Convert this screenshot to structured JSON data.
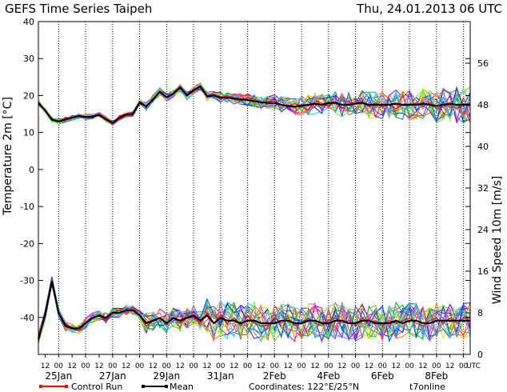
{
  "chart_data": {
    "type": "line",
    "title": "GEFS Time Series Taipeh",
    "date_text": "Thu, 24.01.2013 06 UTC",
    "ylabel_left": "Temperature 2m [°C]",
    "ylabel_right": "Wind Speed 10m [m/s]",
    "temperature_axis": {
      "range": [
        -50,
        40
      ],
      "ticks": [
        40,
        30,
        20,
        10,
        0,
        -10,
        -20,
        -30,
        -40
      ],
      "labels": [
        "40",
        "30",
        "20",
        "10",
        "0",
        "-10",
        "-20",
        "-30",
        "-40"
      ]
    },
    "wind_axis": {
      "range": [
        0,
        64
      ],
      "ticks": [
        0,
        8,
        16,
        24,
        32,
        40,
        48,
        56
      ],
      "labels": [
        "0",
        "8",
        "16",
        "24",
        "32",
        "40",
        "48",
        "56"
      ]
    },
    "time_axis": {
      "unit": "hours since 24.01.2013 06 UTC",
      "range": [
        0,
        384
      ],
      "hour_ticks": [
        6,
        18,
        30,
        42,
        54,
        66,
        78,
        90,
        102,
        114,
        126,
        138,
        150,
        162,
        174,
        186,
        198,
        210,
        222,
        234,
        246,
        258,
        270,
        282,
        294,
        306,
        318,
        330,
        342,
        354,
        366,
        378
      ],
      "hour_labels": [
        "12",
        "00",
        "12",
        "00",
        "12",
        "00",
        "12",
        "00",
        "12",
        "00",
        "12",
        "00",
        "12",
        "00",
        "12",
        "00",
        "12",
        "00",
        "12",
        "00",
        "12",
        "00",
        "12",
        "00",
        "12",
        "00",
        "12",
        "00",
        "12",
        "00",
        "12",
        "00"
      ],
      "utc_label": "UTC",
      "date_positions": [
        18,
        66,
        114,
        162,
        210,
        258,
        306,
        354
      ],
      "date_labels": [
        "25Jan",
        "27Jan",
        "29Jan",
        "31Jan",
        "2Feb",
        "4Feb",
        "6Feb",
        "8Feb"
      ],
      "day_lines": [
        18,
        42,
        66,
        90,
        114,
        138,
        162,
        186,
        210,
        234,
        258,
        282,
        306,
        330,
        354,
        378
      ]
    },
    "mean": {
      "name": "Mean",
      "temperature_x": [
        0,
        6,
        12,
        18,
        24,
        30,
        36,
        42,
        48,
        54,
        60,
        66,
        72,
        78,
        84,
        90,
        96,
        102,
        108,
        114,
        120,
        126,
        132,
        138,
        144,
        150,
        156,
        162,
        168,
        174,
        180,
        186,
        192,
        198,
        204,
        210,
        216,
        222,
        228,
        234,
        240,
        246,
        252,
        258,
        264,
        270,
        276,
        282,
        288,
        294,
        300,
        306,
        312,
        318,
        324,
        330,
        336,
        342,
        348,
        354,
        360,
        366,
        372,
        378,
        384
      ],
      "temperature": [
        18,
        16,
        13.5,
        13,
        13.5,
        14,
        14.5,
        14.2,
        14.3,
        14.8,
        13.6,
        12.5,
        14,
        14.8,
        15,
        18.2,
        17,
        19,
        21,
        19.5,
        20.5,
        22.2,
        20,
        21.5,
        22.5,
        19.8,
        20,
        19.5,
        19.5,
        19.2,
        19,
        18.8,
        18.5,
        18.2,
        18,
        18,
        17.5,
        17.2,
        17,
        17.3,
        17.5,
        17.8,
        17.5,
        18,
        18,
        17.5,
        17.5,
        17.8,
        18,
        17.5,
        17.5,
        17.5,
        17.5,
        17.8,
        17.5,
        17.5,
        17.5,
        17.8,
        17.5,
        17.2,
        17.5,
        17.8,
        17.5,
        17.5,
        17.5
      ],
      "wind_x": [
        0,
        6,
        12,
        18,
        24,
        30,
        36,
        42,
        48,
        54,
        60,
        66,
        72,
        78,
        84,
        90,
        96,
        102,
        108,
        114,
        120,
        126,
        132,
        138,
        144,
        150,
        156,
        162,
        168,
        174,
        180,
        186,
        192,
        198,
        204,
        210,
        216,
        222,
        228,
        234,
        240,
        246,
        252,
        258,
        264,
        270,
        276,
        282,
        288,
        294,
        300,
        306,
        312,
        318,
        324,
        330,
        336,
        342,
        348,
        354,
        360,
        366,
        372,
        378,
        384
      ],
      "wind": [
        3,
        7.5,
        14,
        8,
        5.5,
        5,
        5,
        6,
        7,
        7.5,
        7,
        8,
        8,
        8.5,
        8.5,
        7.5,
        6,
        6.5,
        7,
        6,
        7,
        6.5,
        7,
        7.5,
        6.5,
        7.5,
        6,
        7,
        6.5,
        6.5,
        6,
        6.5,
        6.5,
        6,
        6,
        6,
        6.5,
        6.5,
        6,
        6,
        6.5,
        6.5,
        6,
        6,
        6.5,
        6.5,
        6,
        6,
        6.5,
        6.5,
        6,
        6,
        6,
        6.5,
        6,
        6.5,
        6.5,
        6,
        6,
        6.5,
        6.5,
        6.5,
        6.5,
        6.5,
        6.5
      ]
    },
    "control_run": {
      "name": "Control Run",
      "temperature_x": [
        0,
        6,
        12,
        18,
        24,
        30,
        36,
        42,
        48,
        54,
        60,
        66,
        72,
        78,
        84,
        90,
        96,
        102,
        108,
        114,
        120,
        126,
        132,
        138,
        144,
        150,
        156,
        162,
        168,
        174,
        180,
        186,
        192,
        198,
        204,
        210,
        216,
        222,
        228,
        234,
        240,
        246,
        252,
        258,
        264,
        270,
        276,
        282,
        288,
        294,
        300,
        306,
        312,
        318,
        324,
        330,
        336,
        342,
        348,
        354,
        360,
        366,
        372,
        378,
        384
      ],
      "temperature": [
        18,
        16,
        13.5,
        13,
        14,
        14,
        14.6,
        14,
        14.5,
        14.5,
        13.5,
        12.5,
        14.5,
        15,
        15.5,
        17.8,
        17,
        19,
        21,
        19.5,
        20.5,
        22,
        20,
        21,
        22.5,
        20,
        20.5,
        19,
        20,
        19,
        18.5,
        19.5,
        19,
        18,
        18.5,
        18.5,
        17.5,
        17,
        17.8,
        17,
        16,
        18.5,
        18,
        17,
        18.5,
        16.5,
        18,
        18,
        18.5,
        17,
        18,
        17,
        17.5,
        16.5,
        17.5,
        17.5,
        18,
        17,
        18,
        16.5,
        17,
        17.5,
        16.5,
        17.5,
        18
      ],
      "wind_x": [
        0,
        6,
        12,
        18,
        24,
        30,
        36,
        42,
        48,
        54,
        60,
        66,
        72,
        78,
        84,
        90,
        96,
        102,
        108,
        114,
        120,
        126,
        132,
        138,
        144,
        150,
        156,
        162,
        168,
        174,
        180,
        186,
        192,
        198,
        204,
        210,
        216,
        222,
        228,
        234,
        240,
        246,
        252,
        258,
        264,
        270,
        276,
        282,
        288,
        294,
        300,
        306,
        312,
        318,
        324,
        330,
        336,
        342,
        348,
        354,
        360,
        366,
        372,
        378,
        384
      ],
      "wind": [
        2.7,
        8,
        14.3,
        8,
        6,
        5,
        4.5,
        6,
        7,
        7.5,
        6.5,
        8,
        8.5,
        8,
        9,
        7.5,
        5.5,
        6.5,
        7,
        6,
        7,
        6,
        7.5,
        7,
        6,
        8,
        6,
        7.5,
        6,
        7,
        5.5,
        7.5,
        6,
        5.5,
        5.5,
        7,
        6,
        7,
        5.5,
        6,
        7,
        6,
        5.5,
        6.5,
        7,
        6,
        6.5,
        5.5,
        7,
        6,
        6.5,
        5.5,
        6.5,
        6,
        6.5,
        7,
        6,
        5.5,
        6.5,
        7,
        6,
        7,
        6,
        7,
        7
      ]
    },
    "ensemble_colors": [
      "#00c000",
      "#0000ff",
      "#ff8000",
      "#00c0c0",
      "#c000c0",
      "#ffd000",
      "#00a060",
      "#ff00ff",
      "#8080ff",
      "#80c000",
      "#ff4040",
      "#00e0e0",
      "#a000ff",
      "#ffff00",
      "#0080c0",
      "#c08000",
      "#40ff40",
      "#0040ff",
      "#ff6060",
      "#60c0ff"
    ],
    "colors": {
      "mean": "#000000",
      "control_run": "#ff0000",
      "grid": "#000000"
    },
    "grid": "dotted vertical day lines"
  },
  "legend": {
    "control_run_label": "Control Run",
    "mean_label": "Mean"
  },
  "footer": {
    "coordinates": "Coordinates: 122°E/25°N",
    "source": "t7online"
  }
}
